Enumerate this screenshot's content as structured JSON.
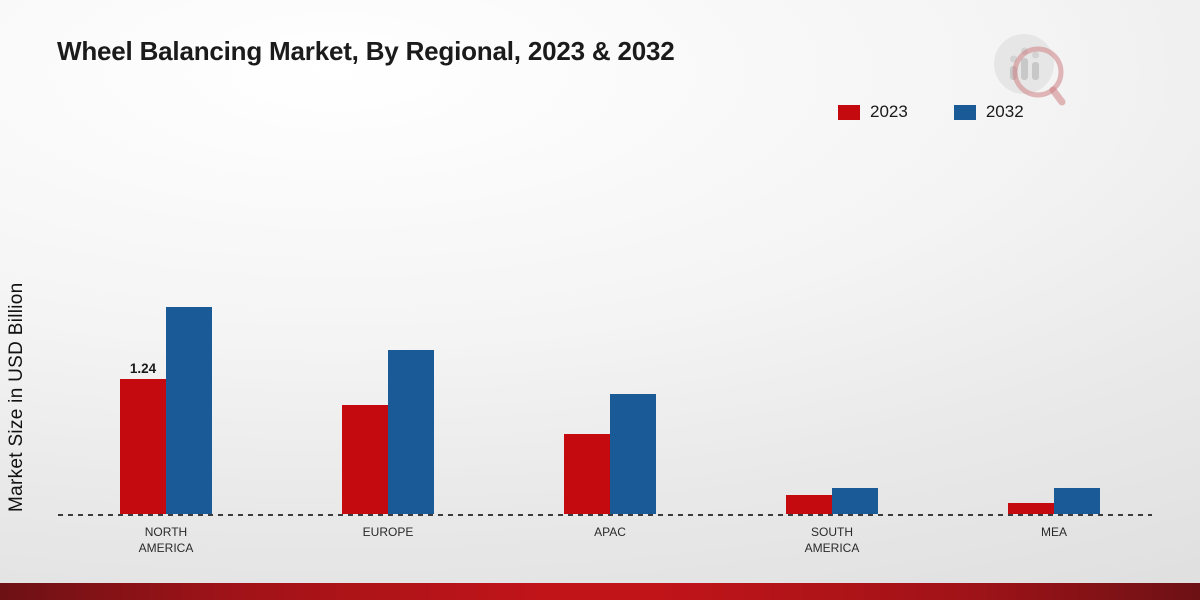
{
  "chart_data": {
    "type": "bar",
    "title": "Wheel Balancing Market, By Regional, 2023 & 2032",
    "ylabel": "Market Size in USD Billion",
    "xlabel": "",
    "categories": [
      "NORTH AMERICA",
      "EUROPE",
      "APAC",
      "SOUTH AMERICA",
      "MEA"
    ],
    "series": [
      {
        "name": "2023",
        "color": "#c40a0f",
        "values": [
          1.24,
          1.0,
          0.73,
          0.17,
          0.1
        ]
      },
      {
        "name": "2032",
        "color": "#1a5a96",
        "values": [
          1.9,
          1.5,
          1.1,
          0.24,
          0.24
        ]
      }
    ],
    "value_labels": [
      {
        "category_index": 0,
        "series_index": 0,
        "text": "1.24"
      }
    ],
    "ylim": [
      0,
      2.0
    ],
    "grid": false,
    "legend_position": "top-right",
    "baseline_style": "dashed",
    "background": "light-gray-gradient"
  },
  "footer": {
    "accent_color": "#c01419"
  },
  "logo": {
    "name": "market-research-future-logo"
  }
}
